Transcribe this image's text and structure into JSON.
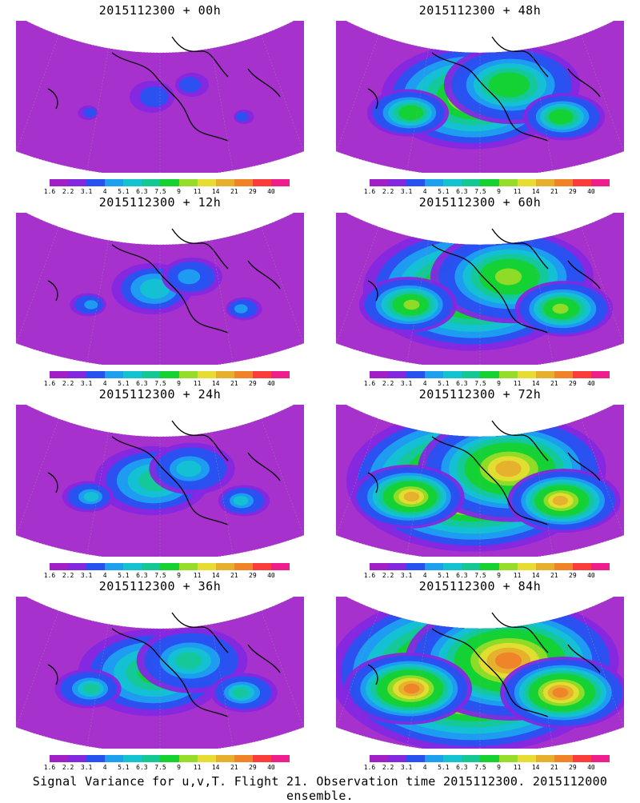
{
  "caption": "Signal Variance for u,v,T. Flight 21. Observation time 2015112300. 2015112000 ensemble.",
  "colorbar": {
    "colors": [
      "#a020c8",
      "#8428e0",
      "#2852f0",
      "#1ea0f0",
      "#14c3d2",
      "#14c896",
      "#14d232",
      "#96dc28",
      "#e6dc32",
      "#e6af2d",
      "#f08228",
      "#fa3c3c",
      "#f01e8c"
    ],
    "ticks": [
      "1.6",
      "2.2",
      "3.1",
      "4",
      "5.1",
      "6.3",
      "7.5",
      "9",
      "11",
      "14",
      "21",
      "29",
      "40"
    ]
  },
  "panels": [
    {
      "title": "2015112300 + 00h",
      "intensity": 0.0
    },
    {
      "title": "2015112300 + 48h",
      "intensity": 0.57
    },
    {
      "title": "2015112300 + 12h",
      "intensity": 0.15
    },
    {
      "title": "2015112300 + 60h",
      "intensity": 0.72
    },
    {
      "title": "2015112300 + 24h",
      "intensity": 0.29
    },
    {
      "title": "2015112300 + 72h",
      "intensity": 0.86
    },
    {
      "title": "2015112300 + 36h",
      "intensity": 0.43
    },
    {
      "title": "2015112300 + 84h",
      "intensity": 1.0
    }
  ]
}
